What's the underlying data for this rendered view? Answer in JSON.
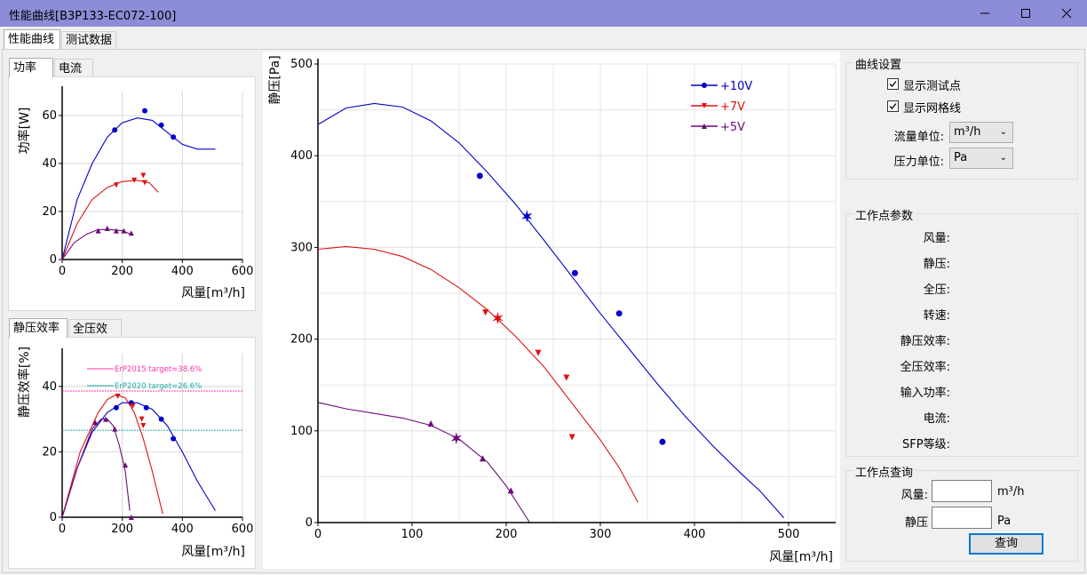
{
  "window": {
    "title": "性能曲线[B3P133-EC072-100]",
    "minimize_icon": "minimize-icon",
    "maximize_icon": "maximize-icon",
    "close_icon": "close-icon"
  },
  "tabs": [
    "性能曲线",
    "测试数据"
  ],
  "power_tabs": [
    "功率",
    "电流"
  ],
  "eff_tabs": [
    "静压效率",
    "全压效率"
  ],
  "colors": {
    "v10": "#0000cc",
    "v7": "#dd1111",
    "v5": "#6a0a78",
    "erp2015": "#ff33aa",
    "erp2020": "#22aaaa",
    "grid": "#d8d8d8"
  },
  "power_chart": {
    "ylabel": "功率[W]",
    "xlabel": "风量[m³/h]",
    "xlim": [
      0,
      600
    ],
    "ylim": [
      0,
      70
    ],
    "xticks": [
      "0",
      "200",
      "400",
      "600"
    ],
    "yticks": [
      "0",
      "20",
      "40",
      "60"
    ]
  },
  "eff_chart": {
    "ylabel": "静压效率[%]",
    "xlabel": "风量[m³/h]",
    "xlim": [
      0,
      600
    ],
    "ylim": [
      0,
      50
    ],
    "xticks": [
      "0",
      "200",
      "400",
      "600"
    ],
    "yticks": [
      "0",
      "20",
      "40"
    ],
    "refs": [
      {
        "label": "ErP2015 target=38.6%",
        "value": 38.6
      },
      {
        "label": "ErP2020 target=26.6%",
        "value": 26.6
      }
    ]
  },
  "main_chart": {
    "ylabel": "静压[Pa]",
    "xlabel": "风量[m³/h]",
    "xlim": [
      0,
      550
    ],
    "ylim": [
      0,
      500
    ],
    "xticks": [
      "0",
      "100",
      "200",
      "300",
      "400",
      "500"
    ],
    "yticks": [
      "0",
      "100",
      "200",
      "300",
      "400",
      "500"
    ],
    "legend": [
      "+10V",
      "+7V",
      "+5V"
    ]
  },
  "chart_data": [
    {
      "type": "line",
      "name": "power",
      "ylabel": "功率[W]",
      "xlabel": "风量[m³/h]",
      "series": [
        {
          "name": "+10V",
          "curve": [
            [
              0,
              0
            ],
            [
              50,
              25
            ],
            [
              100,
              40
            ],
            [
              150,
              51
            ],
            [
              200,
              57
            ],
            [
              250,
              59
            ],
            [
              300,
              58
            ],
            [
              350,
              53
            ],
            [
              400,
              48
            ],
            [
              450,
              46
            ],
            [
              510,
              46
            ]
          ],
          "points": [
            [
              175,
              54
            ],
            [
              275,
              62
            ],
            [
              330,
              56
            ],
            [
              370,
              51
            ]
          ]
        },
        {
          "name": "+7V",
          "curve": [
            [
              0,
              0
            ],
            [
              50,
              15
            ],
            [
              100,
              25
            ],
            [
              150,
              30
            ],
            [
              200,
              32.5
            ],
            [
              250,
              33
            ],
            [
              290,
              32
            ],
            [
              320,
              28
            ]
          ],
          "points": [
            [
              180,
              31
            ],
            [
              240,
              33
            ],
            [
              270,
              35
            ],
            [
              275,
              32
            ]
          ]
        },
        {
          "name": "+5V",
          "curve": [
            [
              0,
              0
            ],
            [
              40,
              7
            ],
            [
              80,
              10.5
            ],
            [
              120,
              12.5
            ],
            [
              160,
              12.5
            ],
            [
              200,
              12
            ],
            [
              230,
              10.5
            ]
          ],
          "points": [
            [
              120,
              12
            ],
            [
              150,
              13
            ],
            [
              180,
              12
            ],
            [
              205,
              12
            ],
            [
              230,
              11
            ]
          ]
        }
      ]
    },
    {
      "type": "line",
      "name": "static-efficiency",
      "ylabel": "静压效率[%]",
      "xlabel": "风量[m³/h]",
      "series": [
        {
          "name": "+10V",
          "curve": [
            [
              0,
              0
            ],
            [
              50,
              15
            ],
            [
              100,
              26
            ],
            [
              150,
              32
            ],
            [
              200,
              35
            ],
            [
              250,
              35
            ],
            [
              300,
              33
            ],
            [
              350,
              28
            ],
            [
              400,
              20
            ],
            [
              450,
              11
            ],
            [
              510,
              2
            ]
          ],
          "points": [
            [
              180,
              33.5
            ],
            [
              230,
              35
            ],
            [
              280,
              33.5
            ],
            [
              330,
              30
            ],
            [
              370,
              24
            ]
          ]
        },
        {
          "name": "+7V",
          "curve": [
            [
              0,
              0
            ],
            [
              60,
              20
            ],
            [
              120,
              32
            ],
            [
              150,
              36
            ],
            [
              180,
              37.5
            ],
            [
              210,
              36.5
            ],
            [
              240,
              32
            ],
            [
              270,
              24
            ],
            [
              300,
              14
            ],
            [
              335,
              1
            ]
          ],
          "points": [
            [
              185,
              37
            ],
            [
              235,
              34
            ],
            [
              265,
              30
            ],
            [
              270,
              28
            ]
          ]
        },
        {
          "name": "+5V",
          "curve": [
            [
              0,
              0
            ],
            [
              50,
              15
            ],
            [
              100,
              27
            ],
            [
              130,
              30
            ],
            [
              150,
              30
            ],
            [
              170,
              28
            ],
            [
              190,
              22
            ],
            [
              210,
              14
            ],
            [
              225,
              2
            ]
          ],
          "points": [
            [
              110,
              29
            ],
            [
              145,
              30
            ],
            [
              175,
              27
            ],
            [
              210,
              16
            ],
            [
              230,
              0
            ]
          ]
        }
      ]
    },
    {
      "type": "line",
      "name": "static-pressure",
      "title": "",
      "xlabel": "风量[m³/h]",
      "ylabel": "静压[Pa]",
      "xlim": [
        0,
        550
      ],
      "ylim": [
        0,
        500
      ],
      "series": [
        {
          "name": "+10V",
          "curve": [
            [
              0,
              434
            ],
            [
              30,
              452
            ],
            [
              60,
              457
            ],
            [
              90,
              453
            ],
            [
              120,
              438
            ],
            [
              150,
              414
            ],
            [
              180,
              382
            ],
            [
              210,
              347
            ],
            [
              240,
              308
            ],
            [
              270,
              268
            ],
            [
              300,
              228
            ],
            [
              330,
              190
            ],
            [
              360,
              152
            ],
            [
              390,
              116
            ],
            [
              420,
              83
            ],
            [
              450,
              53
            ],
            [
              470,
              34
            ],
            [
              495,
              5
            ]
          ],
          "points": [
            [
              172,
              378
            ],
            [
              273,
              272
            ],
            [
              320,
              228
            ],
            [
              366,
              88
            ]
          ],
          "star": [
            222,
            334
          ]
        },
        {
          "name": "+7V",
          "curve": [
            [
              0,
              298
            ],
            [
              30,
              301
            ],
            [
              60,
              298
            ],
            [
              90,
              290
            ],
            [
              120,
              276
            ],
            [
              150,
              256
            ],
            [
              180,
              232
            ],
            [
              210,
              203
            ],
            [
              240,
              170
            ],
            [
              270,
              130
            ],
            [
              300,
              90
            ],
            [
              320,
              60
            ],
            [
              340,
              22
            ]
          ],
          "points": [
            [
              178,
              229
            ],
            [
              234,
              185
            ],
            [
              264,
              158
            ],
            [
              270,
              93
            ]
          ],
          "star": [
            191,
            223
          ]
        },
        {
          "name": "+5V",
          "curve": [
            [
              0,
              131
            ],
            [
              30,
              124
            ],
            [
              60,
              119
            ],
            [
              90,
              114
            ],
            [
              120,
              106
            ],
            [
              150,
              91
            ],
            [
              180,
              66
            ],
            [
              200,
              40
            ],
            [
              225,
              0
            ]
          ],
          "points": [
            [
              120,
              108
            ],
            [
              175,
              70
            ],
            [
              205,
              35
            ]
          ],
          "star": [
            147,
            92
          ]
        }
      ]
    }
  ],
  "settings": {
    "legend": "曲线设置",
    "show_points": "显示测试点",
    "show_grid": "显示网格线",
    "flow_unit_label": "流量单位:",
    "flow_unit": "m³/h",
    "pressure_unit_label": "压力单位:",
    "pressure_unit": "Pa"
  },
  "params": {
    "legend": "工作点参数",
    "labels": [
      "风量:",
      "静压:",
      "全压:",
      "转速:",
      "静压效率:",
      "全压效率:",
      "输入功率:",
      "电流:",
      "SFP等级:"
    ]
  },
  "query": {
    "legend": "工作点查询",
    "flow_label": "风量:",
    "flow_unit": "m³/h",
    "pressure_label": "静压",
    "pressure_unit": "Pa",
    "button": "查询"
  }
}
